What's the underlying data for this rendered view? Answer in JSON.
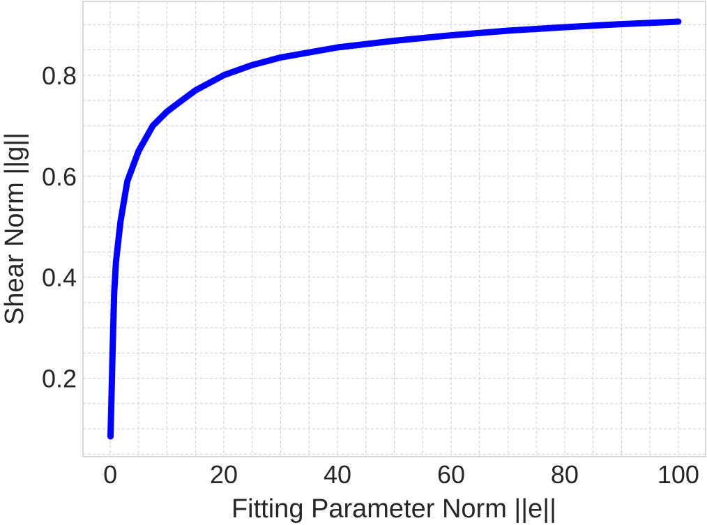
{
  "chart_data": {
    "type": "line",
    "title": "",
    "xlabel": "Fitting Parameter Norm ||e||",
    "ylabel": "Shear Norm ||g||",
    "xlim": [
      -4.8,
      104.8
    ],
    "ylim": [
      0.045,
      0.946
    ],
    "xticks": [
      0,
      20,
      40,
      60,
      80,
      100
    ],
    "xtick_labels": [
      "0",
      "20",
      "40",
      "60",
      "80",
      "100"
    ],
    "yticks": [
      0.2,
      0.4,
      0.6,
      0.8
    ],
    "ytick_labels": [
      "0.2",
      "0.4",
      "0.6",
      "0.8"
    ],
    "minor_x_step": 5,
    "minor_y_step": 0.05,
    "grid": true,
    "series": [
      {
        "name": "shear",
        "color": "#0000ff",
        "x": [
          0.05,
          0.2,
          0.4,
          0.7,
          1,
          1.8,
          3,
          5,
          7.5,
          10,
          12,
          15,
          20,
          25,
          30,
          40,
          50,
          60,
          70,
          80,
          90,
          100
        ],
        "y": [
          0.085,
          0.15,
          0.25,
          0.37,
          0.43,
          0.51,
          0.59,
          0.65,
          0.7,
          0.728,
          0.745,
          0.77,
          0.8,
          0.82,
          0.835,
          0.855,
          0.868,
          0.879,
          0.888,
          0.895,
          0.901,
          0.906
        ]
      }
    ]
  }
}
